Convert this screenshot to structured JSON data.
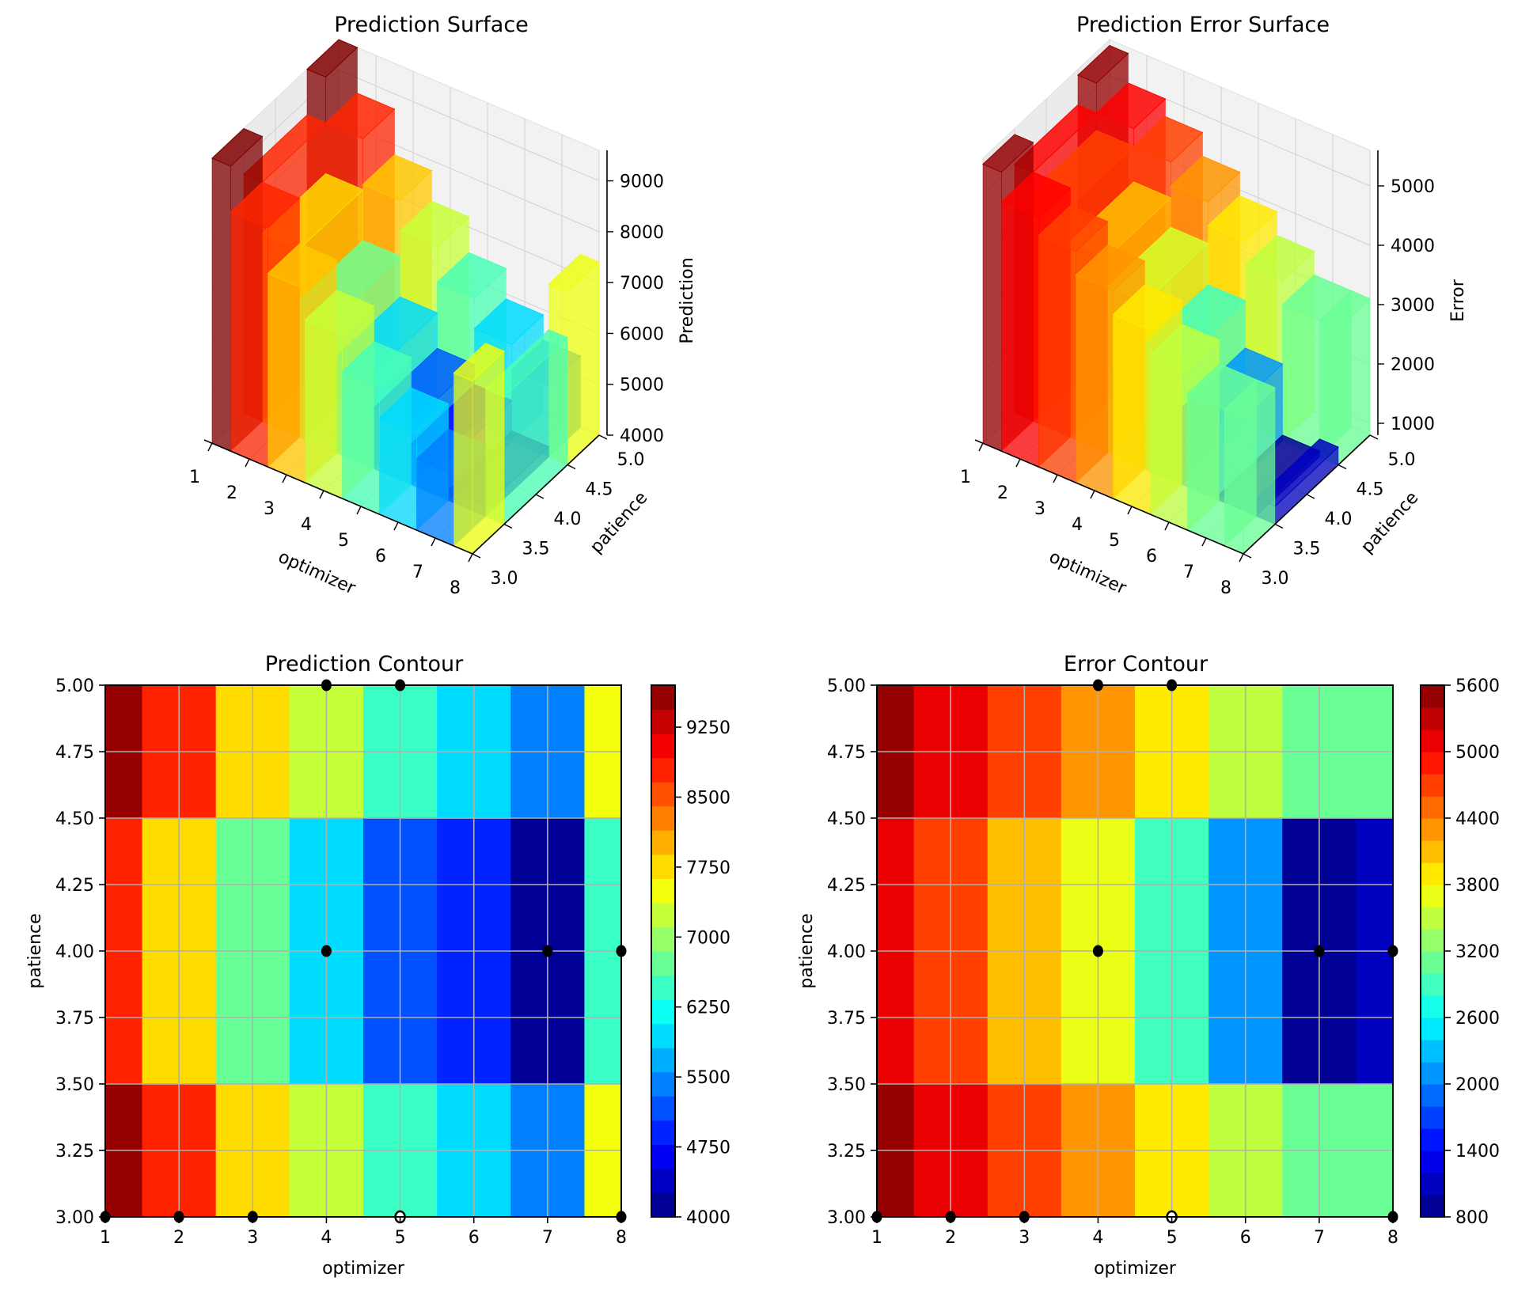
{
  "figure": {
    "panels": [
      "Prediction Surface",
      "Prediction Error Surface",
      "Prediction Contour",
      "Error Contour"
    ]
  },
  "chart_data": [
    {
      "type": "surface3d",
      "title": "Prediction Surface",
      "xlabel": "optimizer",
      "ylabel": "patience",
      "zlabel": "Prediction",
      "xticks": [
        "1",
        "2",
        "3",
        "4",
        "5",
        "6",
        "7",
        "8"
      ],
      "yticks": [
        "3.0",
        "3.5",
        "4.0",
        "4.5",
        "5.0"
      ],
      "zticks": [
        "4000",
        "5000",
        "6000",
        "7000",
        "8000",
        "9000"
      ],
      "xlim": [
        1,
        8
      ],
      "ylim": [
        3,
        5
      ],
      "zlim": [
        4000,
        9600
      ],
      "colormap": "jet",
      "x": [
        1,
        2,
        3,
        4,
        5,
        6,
        7,
        8
      ],
      "y": [
        3,
        4,
        5
      ],
      "z": [
        [
          9600,
          8700,
          7800,
          7200,
          6500,
          5900,
          5400,
          7400
        ],
        [
          8700,
          7700,
          6700,
          5900,
          5200,
          4800,
          4200,
          6500
        ],
        [
          9600,
          8700,
          7800,
          7200,
          6500,
          5900,
          5400,
          7400
        ]
      ]
    },
    {
      "type": "surface3d",
      "title": "Prediction Error Surface",
      "xlabel": "optimizer",
      "ylabel": "patience",
      "zlabel": "Error",
      "xticks": [
        "1",
        "2",
        "3",
        "4",
        "5",
        "6",
        "7",
        "8"
      ],
      "yticks": [
        "3.0",
        "3.5",
        "4.0",
        "4.5",
        "5.0"
      ],
      "zticks": [
        "1000",
        "2000",
        "3000",
        "4000",
        "5000"
      ],
      "xlim": [
        1,
        8
      ],
      "ylim": [
        3,
        5
      ],
      "zlim": [
        800,
        5600
      ],
      "colormap": "jet",
      "x": [
        1,
        2,
        3,
        4,
        5,
        6,
        7,
        8
      ],
      "y": [
        3,
        4,
        5
      ],
      "z": [
        [
          5500,
          5000,
          4700,
          4300,
          3900,
          3500,
          3100,
          3100
        ],
        [
          5000,
          4700,
          4100,
          3600,
          2900,
          2100,
          900,
          1100
        ],
        [
          5500,
          5000,
          4700,
          4300,
          3900,
          3500,
          3100,
          3100
        ]
      ]
    },
    {
      "type": "contourf",
      "title": "Prediction Contour",
      "xlabel": "optimizer",
      "ylabel": "patience",
      "xticks": [
        "1",
        "2",
        "3",
        "4",
        "5",
        "6",
        "7",
        "8"
      ],
      "yticks": [
        "3.00",
        "3.25",
        "3.50",
        "3.75",
        "4.00",
        "4.25",
        "4.50",
        "4.75",
        "5.00"
      ],
      "xlim": [
        1,
        8
      ],
      "ylim": [
        3,
        5
      ],
      "grid": true,
      "colormap": "jet",
      "colorbar": {
        "ticks": [
          "4000",
          "4750",
          "5500",
          "6250",
          "7000",
          "7750",
          "8500",
          "9250"
        ],
        "range": [
          4000,
          9700
        ],
        "levels": 22
      },
      "x": [
        1,
        2,
        3,
        4,
        5,
        6,
        7,
        8
      ],
      "y": [
        3,
        4,
        5
      ],
      "z": [
        [
          9600,
          8700,
          7800,
          7200,
          6500,
          5900,
          5400,
          7400
        ],
        [
          8700,
          7700,
          6700,
          5900,
          5200,
          4800,
          4200,
          6500
        ],
        [
          9600,
          8700,
          7800,
          7200,
          6500,
          5900,
          5400,
          7400
        ]
      ],
      "points": [
        {
          "x": 1,
          "y": 3
        },
        {
          "x": 2,
          "y": 3
        },
        {
          "x": 3,
          "y": 3
        },
        {
          "x": 5,
          "y": 3,
          "hollow": true
        },
        {
          "x": 8,
          "y": 3
        },
        {
          "x": 4,
          "y": 4
        },
        {
          "x": 7,
          "y": 4
        },
        {
          "x": 8,
          "y": 4
        },
        {
          "x": 4,
          "y": 5
        },
        {
          "x": 5,
          "y": 5
        }
      ]
    },
    {
      "type": "contourf",
      "title": "Error Contour",
      "xlabel": "optimizer",
      "ylabel": "patience",
      "xticks": [
        "1",
        "2",
        "3",
        "4",
        "5",
        "6",
        "7",
        "8"
      ],
      "yticks": [
        "3.00",
        "3.25",
        "3.50",
        "3.75",
        "4.00",
        "4.25",
        "4.50",
        "4.75",
        "5.00"
      ],
      "xlim": [
        1,
        8
      ],
      "ylim": [
        3,
        5
      ],
      "grid": true,
      "colormap": "jet",
      "colorbar": {
        "ticks": [
          "800",
          "1400",
          "2000",
          "2600",
          "3200",
          "3800",
          "4400",
          "5000",
          "5600"
        ],
        "range": [
          800,
          5600
        ],
        "levels": 24
      },
      "x": [
        1,
        2,
        3,
        4,
        5,
        6,
        7,
        8
      ],
      "y": [
        3,
        4,
        5
      ],
      "z": [
        [
          5500,
          5000,
          4700,
          4300,
          3900,
          3500,
          3100,
          3100
        ],
        [
          5000,
          4700,
          4100,
          3600,
          2900,
          2100,
          900,
          1100
        ],
        [
          5500,
          5000,
          4700,
          4300,
          3900,
          3500,
          3100,
          3100
        ]
      ],
      "points": [
        {
          "x": 1,
          "y": 3
        },
        {
          "x": 2,
          "y": 3
        },
        {
          "x": 3,
          "y": 3
        },
        {
          "x": 5,
          "y": 3,
          "hollow": true
        },
        {
          "x": 8,
          "y": 3
        },
        {
          "x": 4,
          "y": 4
        },
        {
          "x": 7,
          "y": 4
        },
        {
          "x": 8,
          "y": 4
        },
        {
          "x": 4,
          "y": 5
        },
        {
          "x": 5,
          "y": 5
        }
      ]
    }
  ]
}
